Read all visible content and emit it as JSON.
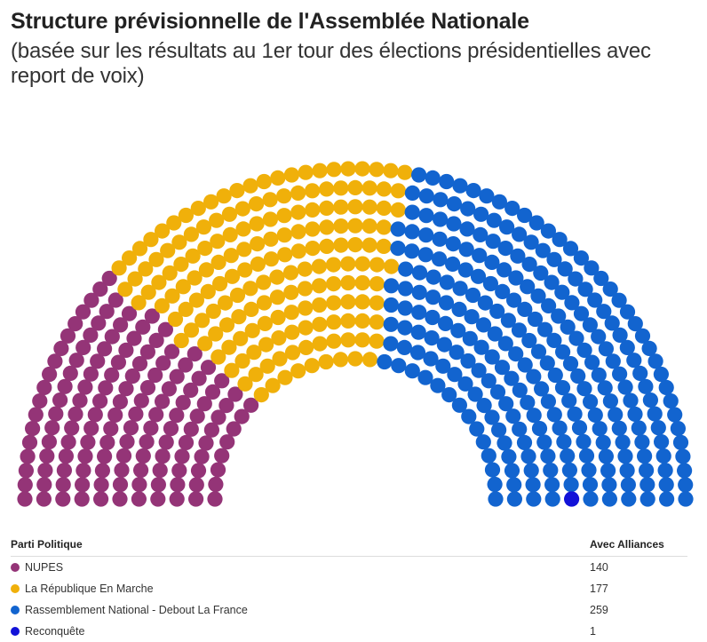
{
  "header": {
    "title": "Structure prévisionnelle de l'Assemblée Nationale",
    "subtitle": "(basée sur les résultats au 1er tour des élections présidentielles avec report de voix)"
  },
  "legend": {
    "col1": "Parti Politique",
    "col2": "Avec Alliances"
  },
  "chart_data": {
    "type": "parliament",
    "total_seats": 577,
    "series": [
      {
        "name": "NUPES",
        "value": 140,
        "color": "#943477"
      },
      {
        "name": "La République En Marche",
        "value": 177,
        "color": "#f0b00a"
      },
      {
        "name": "Rassemblement National - Debout La France",
        "value": 259,
        "color": "#1264cf"
      },
      {
        "name": "Reconquête",
        "value": 1,
        "color": "#1212d8"
      }
    ]
  }
}
